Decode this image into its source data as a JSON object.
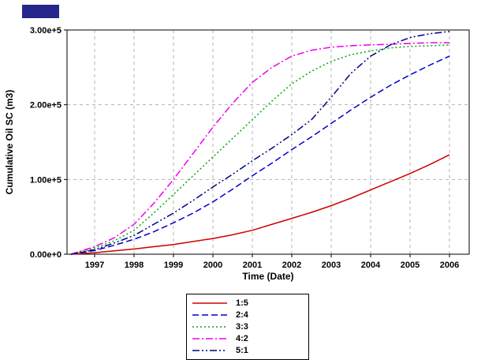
{
  "decor": {
    "corner_color": "#26268c"
  },
  "chart_data": {
    "type": "line",
    "title": "",
    "xlabel": "Time (Date)",
    "ylabel": "Cumulative Oil SC (m3)",
    "xlim": [
      1996.3,
      2006.5
    ],
    "ylim": [
      0,
      300000
    ],
    "grid": "dashed",
    "legend_position": "bottom",
    "xticks": [
      1997,
      1998,
      1999,
      2000,
      2001,
      2002,
      2003,
      2004,
      2005,
      2006
    ],
    "yticks": [
      {
        "value": 0,
        "label": "0.00e+0"
      },
      {
        "value": 100000,
        "label": "1.00e+5"
      },
      {
        "value": 200000,
        "label": "2.00e+5"
      },
      {
        "value": 300000,
        "label": "3.00e+5"
      }
    ],
    "x": [
      1996.4,
      1997,
      1997.5,
      1998,
      1998.5,
      1999,
      1999.5,
      2000,
      2000.5,
      2001,
      2001.5,
      2002,
      2002.5,
      2003,
      2003.5,
      2004,
      2004.5,
      2005,
      2005.5,
      2006
    ],
    "series": [
      {
        "name": "1:5",
        "color": "#cc0000",
        "style": "solid",
        "values": [
          0,
          2000,
          4500,
          7000,
          10000,
          13000,
          17000,
          21000,
          26000,
          32000,
          40000,
          48000,
          56000,
          65000,
          75000,
          86000,
          97000,
          108000,
          120000,
          133000
        ]
      },
      {
        "name": "2:4",
        "color": "#0000cc",
        "style": "dashed",
        "values": [
          0,
          5000,
          12000,
          20000,
          30000,
          42000,
          55000,
          70000,
          87000,
          105000,
          122000,
          140000,
          157000,
          175000,
          193000,
          210000,
          226000,
          240000,
          253000,
          265000
        ]
      },
      {
        "name": "3:3",
        "color": "#00aa00",
        "style": "dotted",
        "values": [
          0,
          8000,
          18000,
          32000,
          55000,
          80000,
          105000,
          130000,
          155000,
          180000,
          205000,
          228000,
          245000,
          258000,
          267000,
          272000,
          276000,
          278000,
          279000,
          280000
        ]
      },
      {
        "name": "4:2",
        "color": "#ee00ee",
        "style": "dashdot",
        "values": [
          0,
          10000,
          22000,
          40000,
          68000,
          100000,
          135000,
          170000,
          202000,
          230000,
          250000,
          265000,
          273000,
          277000,
          279000,
          280000,
          281000,
          282000,
          283000,
          283000
        ]
      },
      {
        "name": "5:1",
        "color": "#000080",
        "style": "dashdotdot",
        "values": [
          0,
          6000,
          15000,
          25000,
          40000,
          55000,
          72000,
          90000,
          107000,
          125000,
          142000,
          160000,
          180000,
          210000,
          242000,
          265000,
          280000,
          290000,
          295000,
          298000
        ]
      }
    ]
  }
}
